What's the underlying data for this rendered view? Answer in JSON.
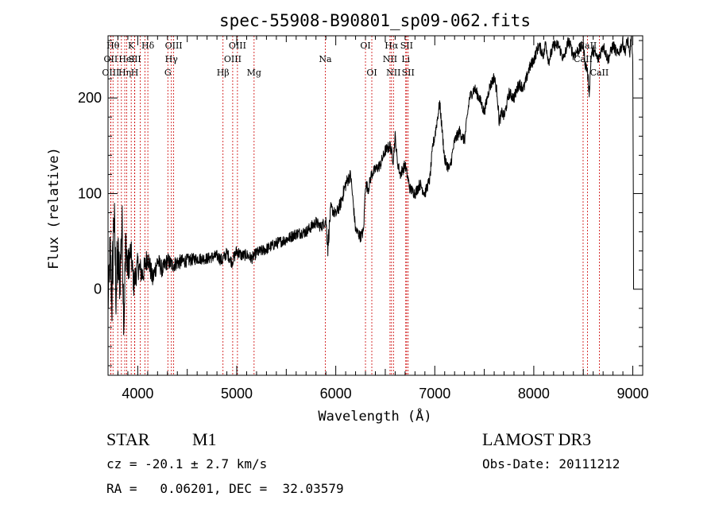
{
  "chart_data": {
    "type": "line",
    "title": "spec-55908-B90801_sp09-062.fits",
    "xlabel": "Wavelength (Å)",
    "ylabel": "Flux (relative)",
    "xlim": [
      3700,
      9100
    ],
    "ylim": [
      -90,
      265
    ],
    "xticks": [
      4000,
      5000,
      6000,
      7000,
      8000,
      9000
    ],
    "yticks": [
      0,
      100,
      200
    ],
    "series": [
      {
        "name": "spectrum",
        "x": [
          3700,
          3720,
          3740,
          3760,
          3780,
          3800,
          3820,
          3840,
          3860,
          3880,
          3900,
          3930,
          3960,
          4000,
          4050,
          4100,
          4150,
          4200,
          4250,
          4300,
          4350,
          4400,
          4500,
          4600,
          4700,
          4800,
          4850,
          4900,
          4950,
          5000,
          5050,
          5100,
          5150,
          5200,
          5300,
          5400,
          5500,
          5600,
          5700,
          5800,
          5850,
          5900,
          5920,
          5950,
          6000,
          6050,
          6100,
          6150,
          6200,
          6250,
          6280,
          6300,
          6330,
          6360,
          6400,
          6450,
          6500,
          6550,
          6580,
          6600,
          6620,
          6650,
          6700,
          6750,
          6800,
          6850,
          6900,
          6950,
          6980,
          7000,
          7050,
          7100,
          7150,
          7200,
          7250,
          7300,
          7350,
          7400,
          7450,
          7500,
          7550,
          7600,
          7630,
          7650,
          7680,
          7700,
          7750,
          7800,
          7850,
          7900,
          7950,
          8000,
          8050,
          8100,
          8120,
          8150,
          8200,
          8250,
          8300,
          8350,
          8400,
          8450,
          8500,
          8520,
          8540,
          8560,
          8580,
          8600,
          8650,
          8700,
          8750,
          8800,
          8850,
          8900,
          8920,
          8950,
          8970,
          8980,
          8990,
          9000
        ],
        "y": [
          -20,
          40,
          -10,
          80,
          0,
          30,
          10,
          70,
          -30,
          50,
          20,
          40,
          5,
          25,
          15,
          35,
          10,
          30,
          20,
          30,
          25,
          28,
          30,
          32,
          32,
          35,
          30,
          38,
          28,
          40,
          35,
          36,
          32,
          38,
          42,
          48,
          52,
          58,
          60,
          70,
          65,
          72,
          45,
          85,
          78,
          90,
          110,
          120,
          62,
          55,
          60,
          110,
          105,
          120,
          125,
          130,
          145,
          150,
          135,
          160,
          135,
          120,
          130,
          105,
          100,
          110,
          100,
          115,
          150,
          160,
          195,
          135,
          125,
          155,
          165,
          155,
          200,
          210,
          200,
          185,
          210,
          222,
          205,
          175,
          185,
          180,
          205,
          200,
          215,
          210,
          230,
          240,
          255,
          245,
          258,
          238,
          255,
          255,
          240,
          260,
          245,
          250,
          255,
          235,
          230,
          205,
          245,
          250,
          240,
          255,
          240,
          255,
          245,
          258,
          248,
          262,
          240,
          265,
          255,
          235
        ],
        "noise_amplitude": [
          18,
          30,
          40,
          35,
          38,
          36,
          28,
          34,
          30,
          26,
          22,
          16,
          14,
          14,
          13,
          12,
          11,
          10,
          9,
          9,
          8,
          8,
          7,
          6,
          6,
          6,
          7,
          6,
          6,
          7,
          6,
          6,
          6,
          6,
          6,
          6,
          6,
          6,
          6,
          6,
          6,
          6,
          12,
          6,
          6,
          7,
          8,
          6,
          6,
          6,
          6,
          6,
          6,
          6,
          6,
          6,
          6,
          6,
          6,
          6,
          6,
          6,
          6,
          6,
          6,
          6,
          6,
          6,
          6,
          6,
          6,
          6,
          6,
          6,
          6,
          6,
          6,
          6,
          6,
          6,
          6,
          6,
          6,
          6,
          6,
          6,
          6,
          6,
          6,
          6,
          6,
          6,
          6,
          6,
          6,
          6,
          6,
          6,
          6,
          6,
          6,
          6,
          6,
          6,
          6,
          6,
          6,
          6,
          6,
          6,
          6,
          6,
          6,
          6,
          6,
          6,
          6,
          6,
          6,
          6
        ]
      }
    ],
    "lines": [
      {
        "wave": 3750,
        "label": "Hθ",
        "row": 1
      },
      {
        "wave": 3727,
        "label": "OII",
        "row": 2
      },
      {
        "wave": 3727,
        "label": "OIII",
        "row": 3
      },
      {
        "wave": 3798,
        "label": "",
        "row": 0
      },
      {
        "wave": 3835,
        "label": "",
        "row": 0
      },
      {
        "wave": 3869,
        "label": "Hη",
        "row": 3
      },
      {
        "wave": 3889,
        "label": "HeI",
        "row": 2
      },
      {
        "wave": 3934,
        "label": "K",
        "row": 1
      },
      {
        "wave": 3969,
        "label": "H",
        "row": 3
      },
      {
        "wave": 3970,
        "label": "SII",
        "row": 2
      },
      {
        "wave": 4026,
        "label": "",
        "row": 0
      },
      {
        "wave": 4072,
        "label": "",
        "row": 0
      },
      {
        "wave": 4102,
        "label": "Hδ",
        "row": 1
      },
      {
        "wave": 4304,
        "label": "G",
        "row": 3
      },
      {
        "wave": 4340,
        "label": "Hγ",
        "row": 2
      },
      {
        "wave": 4363,
        "label": "OIII",
        "row": 1
      },
      {
        "wave": 4861,
        "label": "Hβ",
        "row": 3
      },
      {
        "wave": 4959,
        "label": "OIII",
        "row": 2
      },
      {
        "wave": 5007,
        "label": "OIII",
        "row": 1
      },
      {
        "wave": 5175,
        "label": "Mg",
        "row": 3
      },
      {
        "wave": 5894,
        "label": "Na",
        "row": 2
      },
      {
        "wave": 6300,
        "label": "OI",
        "row": 1
      },
      {
        "wave": 6364,
        "label": "OI",
        "row": 3
      },
      {
        "wave": 6548,
        "label": "NII",
        "row": 2
      },
      {
        "wave": 6563,
        "label": "Hα",
        "row": 1
      },
      {
        "wave": 6583,
        "label": "NII",
        "row": 3
      },
      {
        "wave": 6707,
        "label": "Li",
        "row": 2
      },
      {
        "wave": 6716,
        "label": "SII",
        "row": 1
      },
      {
        "wave": 6731,
        "label": "SII",
        "row": 3
      },
      {
        "wave": 8498,
        "label": "CaII",
        "row": 2
      },
      {
        "wave": 8542,
        "label": "CaII",
        "row": 1
      },
      {
        "wave": 8662,
        "label": "CaII",
        "row": 3
      }
    ]
  },
  "info": {
    "object_class": "STAR",
    "subclass": "M1",
    "cz": "cz = -20.1 ± 2.7 km/s",
    "coords": "RA =   0.06201, DEC =  32.03579",
    "survey": "LAMOST DR3",
    "obs_date": "Obs-Date: 20111212"
  },
  "colors": {
    "spectrum": "#000000",
    "line_marker": "#cc0000",
    "axes": "#000000"
  }
}
